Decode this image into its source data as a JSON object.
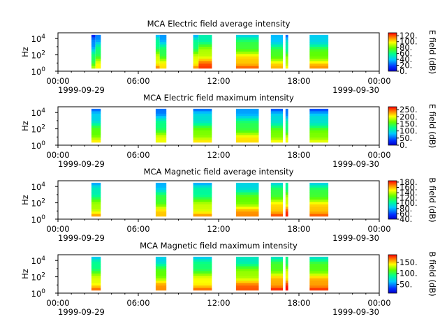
{
  "chart_data": [
    {
      "type": "heatmap",
      "title": "MCA  Electric field average intensity",
      "ylabel": "Hz",
      "colorbar_label": "E field (dB)",
      "colorbar_ticks": [
        "0.",
        "20.",
        "40.",
        "60.",
        "80.",
        "100.",
        "120."
      ],
      "clim": [
        0,
        130
      ],
      "ylim_exp": [
        0,
        4.7
      ],
      "y_ticks": [
        {
          "base": "10",
          "exp": "0"
        },
        {
          "base": "10",
          "exp": "2"
        },
        {
          "base": "10",
          "exp": "4"
        }
      ],
      "x_ticks": [
        "00:00",
        "06:00",
        "12:00",
        "18:00",
        "00:00"
      ],
      "date_left": "1999-09-29",
      "date_right": "1999-09-30",
      "blocks": [
        {
          "start_h": 2.5,
          "end_h": 2.8,
          "mid": 45
        },
        {
          "start_h": 2.8,
          "end_h": 3.2,
          "mid": 60
        },
        {
          "start_h": 7.3,
          "end_h": 7.6,
          "mid": 72
        },
        {
          "start_h": 7.6,
          "end_h": 8.1,
          "mid": 62
        },
        {
          "start_h": 10.1,
          "end_h": 10.5,
          "mid": 72
        },
        {
          "start_h": 10.5,
          "end_h": 11.5,
          "mid": 82
        },
        {
          "start_h": 13.3,
          "end_h": 15.0,
          "mid": 80
        },
        {
          "start_h": 15.9,
          "end_h": 16.8,
          "mid": 65
        },
        {
          "start_h": 17.0,
          "end_h": 17.2,
          "mid": 62
        },
        {
          "start_h": 18.8,
          "end_h": 20.2,
          "mid": 68
        }
      ]
    },
    {
      "type": "heatmap",
      "title": "MCA  Electric field maximum intensity",
      "ylabel": "Hz",
      "colorbar_label": "E field (dB)",
      "colorbar_ticks": [
        "0.",
        "50.",
        "100.",
        "150.",
        "200.",
        "250."
      ],
      "clim": [
        0,
        270
      ],
      "ylim_exp": [
        0,
        4.7
      ],
      "y_ticks": [
        {
          "base": "10",
          "exp": "0"
        },
        {
          "base": "10",
          "exp": "2"
        },
        {
          "base": "10",
          "exp": "4"
        }
      ],
      "x_ticks": [
        "00:00",
        "06:00",
        "12:00",
        "18:00",
        "00:00"
      ],
      "date_left": "1999-09-29",
      "date_right": "1999-09-30",
      "blocks": [
        {
          "start_h": 2.5,
          "end_h": 3.2,
          "mid": 120
        },
        {
          "start_h": 7.3,
          "end_h": 8.1,
          "mid": 120
        },
        {
          "start_h": 10.1,
          "end_h": 11.5,
          "mid": 125
        },
        {
          "start_h": 13.3,
          "end_h": 15.0,
          "mid": 130
        },
        {
          "start_h": 15.9,
          "end_h": 16.8,
          "mid": 120
        },
        {
          "start_h": 17.0,
          "end_h": 17.2,
          "mid": 115
        },
        {
          "start_h": 18.8,
          "end_h": 20.2,
          "mid": 118
        }
      ]
    },
    {
      "type": "heatmap",
      "title": "MCA  Magnetic field average intensity",
      "ylabel": "Hz",
      "colorbar_label": "B field (dB)",
      "colorbar_ticks": [
        "40.",
        "60.",
        "80.",
        "100.",
        "120.",
        "140.",
        "160.",
        "180."
      ],
      "clim": [
        40,
        185
      ],
      "ylim_exp": [
        0,
        4.7
      ],
      "y_ticks": [
        {
          "base": "10",
          "exp": "0"
        },
        {
          "base": "10",
          "exp": "2"
        },
        {
          "base": "10",
          "exp": "4"
        }
      ],
      "x_ticks": [
        "00:00",
        "06:00",
        "12:00",
        "18:00",
        "00:00"
      ],
      "date_left": "1999-09-29",
      "date_right": "1999-09-30",
      "blocks": [
        {
          "start_h": 2.5,
          "end_h": 3.2,
          "mid": 115
        },
        {
          "start_h": 7.3,
          "end_h": 8.1,
          "mid": 115
        },
        {
          "start_h": 10.1,
          "end_h": 11.5,
          "mid": 118
        },
        {
          "start_h": 13.3,
          "end_h": 15.0,
          "mid": 122
        },
        {
          "start_h": 15.9,
          "end_h": 16.8,
          "mid": 130
        },
        {
          "start_h": 17.0,
          "end_h": 17.2,
          "mid": 135
        },
        {
          "start_h": 18.8,
          "end_h": 20.2,
          "mid": 130
        }
      ]
    },
    {
      "type": "heatmap",
      "title": "MCA  Magnetic field maximum intensity",
      "ylabel": "Hz",
      "colorbar_label": "B field (dB)",
      "colorbar_ticks": [
        "50.",
        "100.",
        "150."
      ],
      "clim": [
        10,
        185
      ],
      "ylim_exp": [
        0,
        4.7
      ],
      "y_ticks": [
        {
          "base": "10",
          "exp": "0"
        },
        {
          "base": "10",
          "exp": "2"
        },
        {
          "base": "10",
          "exp": "4"
        }
      ],
      "x_ticks": [
        "00:00",
        "06:00",
        "12:00",
        "18:00",
        "00:00"
      ],
      "date_left": "1999-09-29",
      "date_right": "1999-09-30",
      "blocks": [
        {
          "start_h": 2.5,
          "end_h": 3.2,
          "mid": 110
        },
        {
          "start_h": 7.3,
          "end_h": 8.1,
          "mid": 110
        },
        {
          "start_h": 10.1,
          "end_h": 11.5,
          "mid": 112
        },
        {
          "start_h": 13.3,
          "end_h": 15.0,
          "mid": 118
        },
        {
          "start_h": 15.9,
          "end_h": 16.8,
          "mid": 125
        },
        {
          "start_h": 17.0,
          "end_h": 17.2,
          "mid": 130
        },
        {
          "start_h": 18.8,
          "end_h": 20.2,
          "mid": 125
        }
      ]
    }
  ]
}
